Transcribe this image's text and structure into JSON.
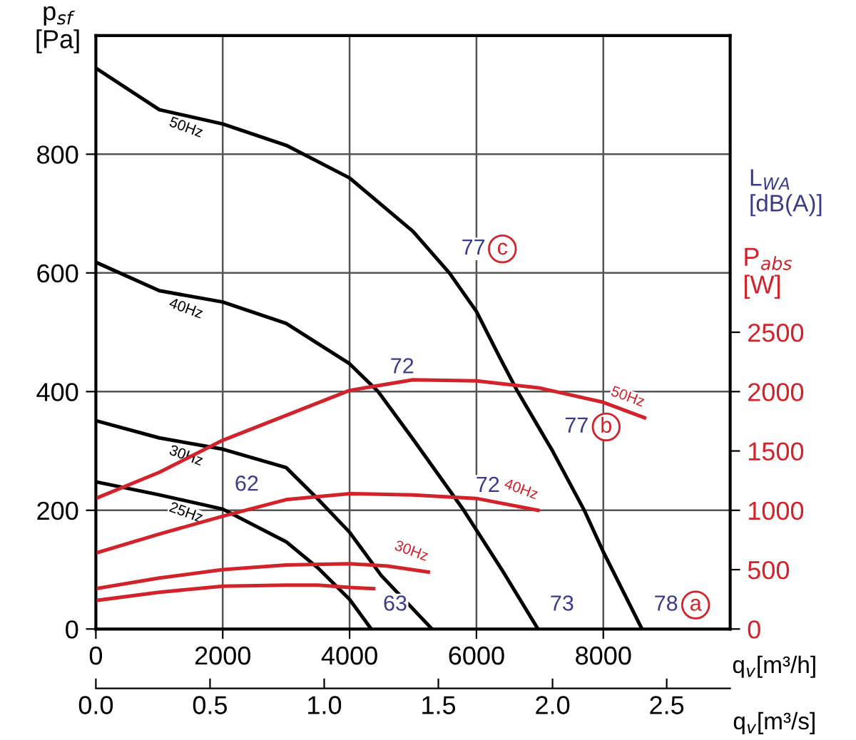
{
  "chart_data": {
    "type": "line",
    "ylabel": "p$_{sf}$\n[Pa]",
    "xlabel": "q$_{v}$[m³/h]",
    "x2label": "q$_{v}$[m³/s]",
    "y2label": "P$_{abs}$\n[W]",
    "xlim": [
      0,
      10000
    ],
    "xticks": [
      0,
      2000,
      4000,
      6000,
      8000
    ],
    "ylim": [
      0,
      1000
    ],
    "yticks": [
      0,
      200,
      400,
      600,
      800
    ],
    "y2lim": [
      0,
      5000
    ],
    "y2ticks": [
      0,
      500,
      1000,
      1500,
      2000,
      2500
    ],
    "x2lim": [
      0,
      2.778
    ],
    "x2ticks": [
      {
        "value": 0,
        "label": "0.0"
      },
      0.5,
      {
        "value": 1,
        "label": "1.0"
      },
      1.5,
      {
        "value": 2,
        "label": "2.0"
      },
      2.5
    ],
    "grid": true,
    "marker": "none",
    "line_style": "solid",
    "series": [
      {
        "name": "50Hz",
        "color": "#000000",
        "x": [
          0,
          1000,
          2000,
          3000,
          4000,
          5000,
          5573,
          6000,
          6360,
          6650,
          7200,
          7700,
          8000,
          8610
        ],
        "values": [
          945,
          875,
          851,
          815,
          760,
          670,
          600,
          535,
          459,
          400,
          300,
          200,
          130,
          0
        ]
      },
      {
        "name": "40Hz",
        "color": "#000000",
        "x": [
          0,
          1000,
          2000,
          3000,
          4000,
          4450,
          5000,
          5800,
          6400,
          6970
        ],
        "values": [
          618,
          570,
          551,
          515,
          447,
          400,
          320,
          200,
          100,
          0
        ]
      },
      {
        "name": "30Hz",
        "color": "#000000",
        "x": [
          0,
          1000,
          2000,
          3000,
          3500,
          4000,
          4500,
          5300
        ],
        "values": [
          351,
          322,
          303,
          272,
          219,
          163,
          90,
          0
        ]
      },
      {
        "name": "25Hz",
        "color": "#000000",
        "x": [
          0,
          1000,
          2000,
          3000,
          3500,
          4000,
          4340
        ],
        "values": [
          248,
          226,
          202,
          147,
          103,
          50,
          0
        ]
      },
      {
        "name": "50Hz",
        "color": "#d2232a",
        "axis": "y2",
        "x": [
          0,
          1000,
          2000,
          3000,
          4000,
          5000,
          6000,
          7000,
          8000,
          8650
        ],
        "values": [
          1100,
          1320,
          1590,
          1800,
          2010,
          2100,
          2090,
          2030,
          1910,
          1780
        ]
      },
      {
        "name": "40Hz",
        "color": "#d2232a",
        "axis": "y2",
        "x": [
          0,
          1000,
          2000,
          3000,
          4000,
          5000,
          6000,
          6970
        ],
        "values": [
          640,
          800,
          950,
          1090,
          1140,
          1130,
          1100,
          1000
        ]
      },
      {
        "name": "30Hz",
        "color": "#d2232a",
        "axis": "y2",
        "x": [
          0,
          1000,
          2000,
          3000,
          4000,
          4600,
          5240
        ],
        "values": [
          340,
          430,
          500,
          540,
          550,
          530,
          480
        ]
      },
      {
        "color": "#d2232a",
        "axis": "y2",
        "x": [
          0,
          1000,
          2000,
          3000,
          3500,
          4000,
          4380
        ],
        "values": [
          240,
          310,
          360,
          370,
          370,
          350,
          340
        ]
      }
    ],
    "annotations": [
      {
        "text": "62",
        "x": 2000,
        "y": 202
      },
      {
        "text": "63",
        "x": 4340,
        "y": 0
      },
      {
        "text": "72",
        "x": 4450,
        "y": 400
      },
      {
        "text": "72",
        "x": 5800,
        "y": 200
      },
      {
        "text": "73",
        "x": 6970,
        "y": 0
      },
      {
        "text": "78",
        "x": 8610,
        "y": 0
      },
      {
        "text": "77",
        "x": 5573,
        "y": 600
      },
      {
        "text": "77",
        "x": 7200,
        "y": 300
      },
      {
        "text": "c",
        "x": 5573,
        "y": 600
      },
      {
        "text": "b",
        "x": 7200,
        "y": 300
      },
      {
        "text": "a",
        "x": 8610,
        "y": 0
      },
      "L$_{WA}$\n[dB(A)]"
    ]
  }
}
